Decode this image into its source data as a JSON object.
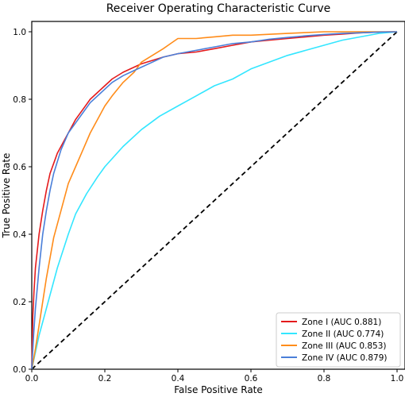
{
  "chart_data": {
    "type": "line",
    "title": "Receiver Operating Characteristic Curve",
    "xlabel": "False Positive Rate",
    "ylabel": "True Positive Rate",
    "xlim": [
      0.0,
      1.0
    ],
    "ylim": [
      0.0,
      1.0
    ],
    "xticks": [
      "0.0",
      "0.2",
      "0.4",
      "0.6",
      "0.8",
      "1.0"
    ],
    "yticks": [
      "0.0",
      "0.2",
      "0.4",
      "0.6",
      "0.8",
      "1.0"
    ],
    "grid": false,
    "legend_position": "bottom-right",
    "reference_line": {
      "x": [
        0,
        1
      ],
      "y": [
        0,
        1
      ],
      "style": "dashed",
      "color": "#000000"
    },
    "series": [
      {
        "name": "Zone I (AUC 0.881)",
        "color": "#e41a1c",
        "x": [
          0,
          0.003,
          0.006,
          0.01,
          0.015,
          0.02,
          0.03,
          0.04,
          0.05,
          0.06,
          0.07,
          0.08,
          0.1,
          0.12,
          0.14,
          0.16,
          0.18,
          0.2,
          0.22,
          0.25,
          0.28,
          0.3,
          0.33,
          0.36,
          0.4,
          0.45,
          0.5,
          0.55,
          0.6,
          0.65,
          0.7,
          0.75,
          0.8,
          0.85,
          0.9,
          0.95,
          1.0
        ],
        "y": [
          0,
          0.16,
          0.23,
          0.3,
          0.35,
          0.4,
          0.47,
          0.53,
          0.58,
          0.61,
          0.64,
          0.66,
          0.7,
          0.74,
          0.77,
          0.8,
          0.82,
          0.84,
          0.86,
          0.88,
          0.895,
          0.905,
          0.915,
          0.925,
          0.935,
          0.94,
          0.95,
          0.96,
          0.97,
          0.975,
          0.98,
          0.985,
          0.99,
          0.993,
          0.997,
          0.999,
          1.0
        ]
      },
      {
        "name": "Zone II (AUC 0.774)",
        "color": "#33e6ff",
        "x": [
          0,
          0.01,
          0.02,
          0.03,
          0.05,
          0.07,
          0.1,
          0.12,
          0.15,
          0.18,
          0.2,
          0.25,
          0.3,
          0.35,
          0.4,
          0.45,
          0.5,
          0.55,
          0.6,
          0.65,
          0.7,
          0.75,
          0.8,
          0.85,
          0.9,
          0.95,
          1.0
        ],
        "y": [
          0,
          0.05,
          0.1,
          0.14,
          0.22,
          0.3,
          0.4,
          0.46,
          0.52,
          0.57,
          0.6,
          0.66,
          0.71,
          0.75,
          0.78,
          0.81,
          0.84,
          0.86,
          0.89,
          0.91,
          0.93,
          0.945,
          0.96,
          0.975,
          0.985,
          0.995,
          1.0
        ]
      },
      {
        "name": "Zone III (AUC 0.853)",
        "color": "#ff8c1a",
        "x": [
          0,
          0.01,
          0.02,
          0.03,
          0.04,
          0.05,
          0.06,
          0.08,
          0.1,
          0.12,
          0.14,
          0.16,
          0.18,
          0.2,
          0.22,
          0.25,
          0.28,
          0.3,
          0.33,
          0.36,
          0.38,
          0.4,
          0.45,
          0.5,
          0.55,
          0.6,
          0.7,
          0.8,
          0.9,
          1.0
        ],
        "y": [
          0,
          0.06,
          0.13,
          0.2,
          0.27,
          0.33,
          0.39,
          0.47,
          0.55,
          0.6,
          0.65,
          0.7,
          0.74,
          0.78,
          0.81,
          0.85,
          0.88,
          0.91,
          0.93,
          0.95,
          0.965,
          0.98,
          0.98,
          0.985,
          0.99,
          0.99,
          0.995,
          1.0,
          1.0,
          1.0
        ]
      },
      {
        "name": "Zone IV (AUC 0.879)",
        "color": "#4a7fd9",
        "x": [
          0,
          0.005,
          0.01,
          0.02,
          0.03,
          0.04,
          0.05,
          0.06,
          0.08,
          0.1,
          0.12,
          0.14,
          0.16,
          0.18,
          0.2,
          0.22,
          0.25,
          0.28,
          0.3,
          0.33,
          0.36,
          0.4,
          0.45,
          0.5,
          0.55,
          0.6,
          0.65,
          0.7,
          0.75,
          0.8,
          0.85,
          0.9,
          0.95,
          1.0
        ],
        "y": [
          0,
          0.1,
          0.18,
          0.3,
          0.4,
          0.47,
          0.53,
          0.58,
          0.65,
          0.7,
          0.73,
          0.76,
          0.79,
          0.81,
          0.83,
          0.85,
          0.87,
          0.885,
          0.895,
          0.91,
          0.925,
          0.935,
          0.945,
          0.955,
          0.965,
          0.97,
          0.978,
          0.983,
          0.988,
          0.992,
          0.995,
          0.997,
          0.999,
          1.0
        ]
      }
    ]
  }
}
